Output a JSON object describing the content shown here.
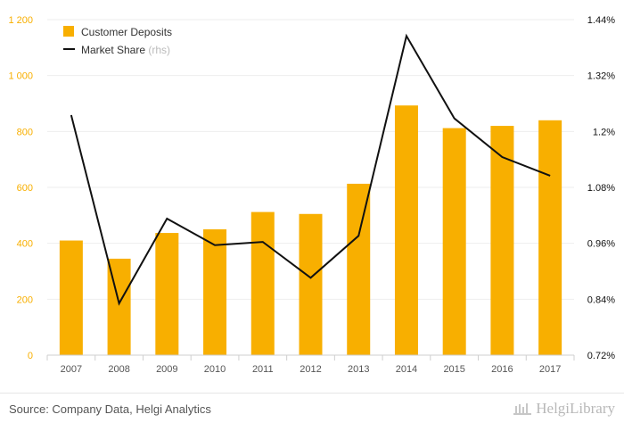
{
  "chart_data": {
    "type": "bar",
    "categories": [
      "2007",
      "2008",
      "2009",
      "2010",
      "2011",
      "2012",
      "2013",
      "2014",
      "2015",
      "2016",
      "2017"
    ],
    "series": [
      {
        "name": "Customer Deposits",
        "type": "bar",
        "axis": "left",
        "color": "#f8af00",
        "values": [
          410,
          345,
          437,
          450,
          512,
          505,
          613,
          893,
          812,
          820,
          840
        ]
      },
      {
        "name": "Market Share",
        "legend_suffix": "(rhs)",
        "type": "line",
        "axis": "right",
        "color": "#111111",
        "values": [
          1.235,
          0.831,
          1.013,
          0.956,
          0.963,
          0.886,
          0.976,
          1.405,
          1.228,
          1.145,
          1.105
        ]
      }
    ],
    "y_left": {
      "ylim": [
        0,
        1200
      ],
      "ticks": [
        0,
        200,
        400,
        600,
        800,
        1000,
        1200
      ],
      "tick_labels": [
        "0",
        "200",
        "400",
        "600",
        "800",
        "1 000",
        "1 200"
      ],
      "color": "#f8af00"
    },
    "y_right": {
      "ylim": [
        0.72,
        1.44
      ],
      "ticks": [
        0.72,
        0.84,
        0.96,
        1.08,
        1.2,
        1.32,
        1.44
      ],
      "tick_labels": [
        "0.72%",
        "0.84%",
        "0.96%",
        "1.08%",
        "1.2%",
        "1.32%",
        "1.44%"
      ],
      "color": "#111111"
    },
    "grid": true,
    "legend_position": "top-left"
  },
  "footer": {
    "source": "Source: Company Data, Helgi Analytics",
    "brand": "HelgiLibrary"
  },
  "colors": {
    "bar": "#f8af00",
    "line": "#111111",
    "grid": "#eeeeee"
  }
}
